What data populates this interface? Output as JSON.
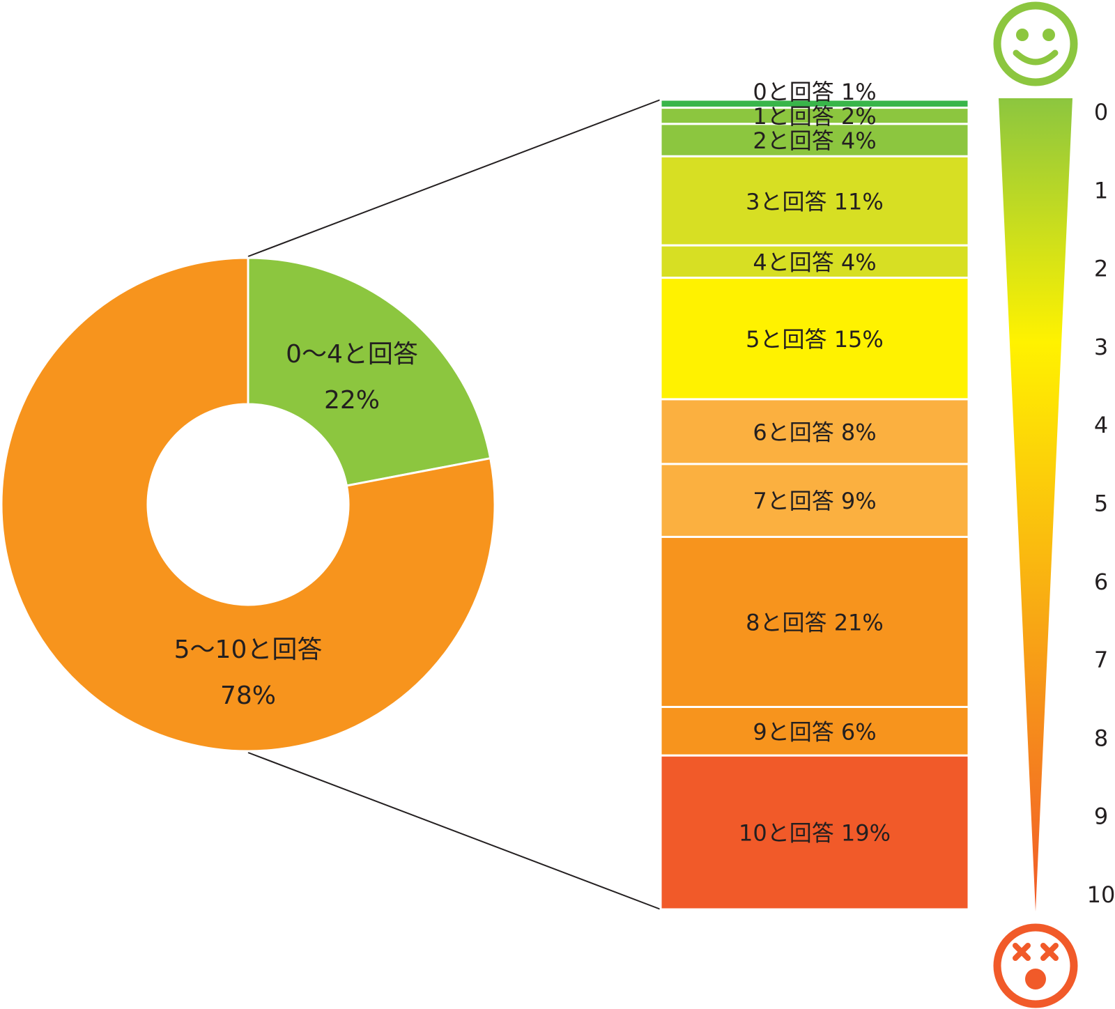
{
  "chart_data": [
    {
      "type": "pie",
      "subtype": "donut",
      "slices": [
        {
          "label": "0〜4と回答",
          "value": 22,
          "value_label": "22%",
          "color": "#8cc63f"
        },
        {
          "label": "5〜10と回答",
          "value": 78,
          "value_label": "78%",
          "color": "#f7941d"
        }
      ]
    },
    {
      "type": "bar",
      "subtype": "stacked-100",
      "segments": [
        {
          "label": "0と回答",
          "value": 1,
          "value_label": "1%",
          "color": "#39b54a"
        },
        {
          "label": "1と回答",
          "value": 2,
          "value_label": "2%",
          "color": "#8cc63f"
        },
        {
          "label": "2と回答",
          "value": 4,
          "value_label": "4%",
          "color": "#8cc63f"
        },
        {
          "label": "3と回答",
          "value": 11,
          "value_label": "11%",
          "color": "#d7df23"
        },
        {
          "label": "4と回答",
          "value": 4,
          "value_label": "4%",
          "color": "#d7df23"
        },
        {
          "label": "5と回答",
          "value": 15,
          "value_label": "15%",
          "color": "#fff200"
        },
        {
          "label": "6と回答",
          "value": 8,
          "value_label": "8%",
          "color": "#fbb040"
        },
        {
          "label": "7と回答",
          "value": 9,
          "value_label": "9%",
          "color": "#fbb040"
        },
        {
          "label": "8と回答",
          "value": 21,
          "value_label": "21%",
          "color": "#f7941d"
        },
        {
          "label": "9と回答",
          "value": 6,
          "value_label": "6%",
          "color": "#f7941d"
        },
        {
          "label": "10と回答",
          "value": 19,
          "value_label": "19%",
          "color": "#f15a29"
        }
      ]
    }
  ],
  "scale": {
    "ticks": [
      "0",
      "1",
      "2",
      "3",
      "4",
      "5",
      "6",
      "7",
      "8",
      "9",
      "10"
    ],
    "colors": {
      "top": "#8cc63f",
      "middle": "#fff200",
      "bottom": "#f15a29"
    },
    "top_icon": {
      "name": "smiley-face-icon",
      "color": "#8cc63f"
    },
    "bottom_icon": {
      "name": "dizzy-face-icon",
      "color": "#f15a29"
    }
  }
}
